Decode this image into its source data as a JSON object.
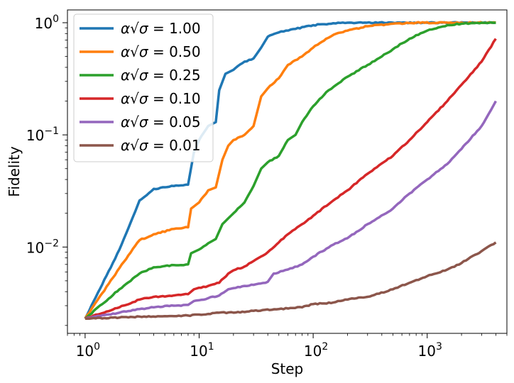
{
  "chart_data": {
    "type": "line",
    "xscale": "log",
    "yscale": "log",
    "xlabel": "Step",
    "ylabel": "Fidelity",
    "xlim": [
      0.7,
      5000
    ],
    "ylim": [
      0.0017,
      1.3
    ],
    "grid": false,
    "legend_position": "top-left",
    "x_ticks": [
      {
        "value": 1,
        "base": "10",
        "exp": "0"
      },
      {
        "value": 10,
        "base": "10",
        "exp": "1"
      },
      {
        "value": 100,
        "base": "10",
        "exp": "2"
      },
      {
        "value": 1000,
        "base": "10",
        "exp": "3"
      }
    ],
    "y_ticks": [
      {
        "value": 0.01,
        "base": "10",
        "exp": "−2"
      },
      {
        "value": 0.1,
        "base": "10",
        "exp": "−1"
      },
      {
        "value": 1,
        "base": "10",
        "exp": "0"
      }
    ],
    "series": [
      {
        "name": "1.00",
        "legend_prefix": "α√σ = ",
        "color": "#1f77b4",
        "points": [
          [
            1,
            0.0023
          ],
          [
            2,
            0.0095
          ],
          [
            3,
            0.026
          ],
          [
            4,
            0.033
          ],
          [
            6,
            0.035
          ],
          [
            8,
            0.036
          ],
          [
            9,
            0.07
          ],
          [
            10,
            0.09
          ],
          [
            12,
            0.12
          ],
          [
            14,
            0.13
          ],
          [
            15,
            0.25
          ],
          [
            17,
            0.35
          ],
          [
            20,
            0.38
          ],
          [
            25,
            0.45
          ],
          [
            30,
            0.48
          ],
          [
            35,
            0.6
          ],
          [
            40,
            0.75
          ],
          [
            50,
            0.82
          ],
          [
            70,
            0.88
          ],
          [
            100,
            0.95
          ],
          [
            150,
            0.99
          ],
          [
            200,
            1.0
          ],
          [
            500,
            1.0
          ],
          [
            4000,
            1.0
          ]
        ]
      },
      {
        "name": "0.50",
        "legend_prefix": "α√σ = ",
        "color": "#ff7f0e",
        "points": [
          [
            1,
            0.0023
          ],
          [
            2,
            0.0065
          ],
          [
            3,
            0.0115
          ],
          [
            4,
            0.013
          ],
          [
            6,
            0.0145
          ],
          [
            8,
            0.015
          ],
          [
            8.5,
            0.022
          ],
          [
            10,
            0.025
          ],
          [
            12,
            0.032
          ],
          [
            14,
            0.034
          ],
          [
            16,
            0.06
          ],
          [
            18,
            0.08
          ],
          [
            20,
            0.09
          ],
          [
            25,
            0.1
          ],
          [
            30,
            0.12
          ],
          [
            35,
            0.22
          ],
          [
            40,
            0.26
          ],
          [
            50,
            0.32
          ],
          [
            60,
            0.42
          ],
          [
            80,
            0.5
          ],
          [
            100,
            0.6
          ],
          [
            130,
            0.72
          ],
          [
            160,
            0.8
          ],
          [
            200,
            0.85
          ],
          [
            300,
            0.93
          ],
          [
            500,
            0.98
          ],
          [
            800,
            1.0
          ],
          [
            4000,
            1.0
          ]
        ]
      },
      {
        "name": "0.25",
        "legend_prefix": "α√σ = ",
        "color": "#2ca02c",
        "points": [
          [
            1,
            0.0023
          ],
          [
            2,
            0.0042
          ],
          [
            3,
            0.0058
          ],
          [
            4,
            0.0066
          ],
          [
            6,
            0.0069
          ],
          [
            8,
            0.007
          ],
          [
            8.5,
            0.0088
          ],
          [
            10,
            0.0095
          ],
          [
            12,
            0.0108
          ],
          [
            14,
            0.0118
          ],
          [
            16,
            0.016
          ],
          [
            18,
            0.018
          ],
          [
            20,
            0.02
          ],
          [
            25,
            0.025
          ],
          [
            30,
            0.035
          ],
          [
            35,
            0.05
          ],
          [
            40,
            0.057
          ],
          [
            50,
            0.065
          ],
          [
            60,
            0.09
          ],
          [
            70,
            0.1
          ],
          [
            80,
            0.13
          ],
          [
            100,
            0.18
          ],
          [
            130,
            0.24
          ],
          [
            160,
            0.28
          ],
          [
            200,
            0.33
          ],
          [
            300,
            0.42
          ],
          [
            400,
            0.5
          ],
          [
            500,
            0.58
          ],
          [
            700,
            0.72
          ],
          [
            1000,
            0.85
          ],
          [
            1500,
            0.95
          ],
          [
            2000,
            0.98
          ],
          [
            3000,
            1.0
          ],
          [
            4000,
            1.0
          ]
        ]
      },
      {
        "name": "0.10",
        "legend_prefix": "α√σ = ",
        "color": "#d62728",
        "points": [
          [
            1,
            0.0023
          ],
          [
            2,
            0.0029
          ],
          [
            3,
            0.0034
          ],
          [
            4,
            0.0036
          ],
          [
            6,
            0.0037
          ],
          [
            8,
            0.0038
          ],
          [
            9,
            0.0042
          ],
          [
            12,
            0.0045
          ],
          [
            15,
            0.0048
          ],
          [
            18,
            0.0058
          ],
          [
            20,
            0.0062
          ],
          [
            25,
            0.0067
          ],
          [
            30,
            0.0075
          ],
          [
            40,
            0.009
          ],
          [
            50,
            0.011
          ],
          [
            60,
            0.013
          ],
          [
            80,
            0.016
          ],
          [
            100,
            0.019
          ],
          [
            150,
            0.026
          ],
          [
            200,
            0.032
          ],
          [
            300,
            0.045
          ],
          [
            500,
            0.065
          ],
          [
            700,
            0.09
          ],
          [
            1000,
            0.13
          ],
          [
            1500,
            0.2
          ],
          [
            2000,
            0.28
          ],
          [
            3000,
            0.45
          ],
          [
            4000,
            0.72
          ]
        ]
      },
      {
        "name": "0.05",
        "legend_prefix": "α√σ = ",
        "color": "#9467bd",
        "points": [
          [
            1,
            0.0023
          ],
          [
            2,
            0.0026
          ],
          [
            3,
            0.0028
          ],
          [
            4,
            0.0029
          ],
          [
            6,
            0.003
          ],
          [
            8,
            0.00305
          ],
          [
            9,
            0.0033
          ],
          [
            12,
            0.0035
          ],
          [
            15,
            0.0037
          ],
          [
            18,
            0.0042
          ],
          [
            20,
            0.0043
          ],
          [
            25,
            0.0045
          ],
          [
            30,
            0.0046
          ],
          [
            40,
            0.0049
          ],
          [
            45,
            0.0058
          ],
          [
            60,
            0.0063
          ],
          [
            80,
            0.007
          ],
          [
            100,
            0.0082
          ],
          [
            150,
            0.0105
          ],
          [
            200,
            0.012
          ],
          [
            300,
            0.016
          ],
          [
            500,
            0.022
          ],
          [
            700,
            0.03
          ],
          [
            1000,
            0.04
          ],
          [
            1500,
            0.055
          ],
          [
            2000,
            0.075
          ],
          [
            3000,
            0.12
          ],
          [
            4000,
            0.2
          ]
        ]
      },
      {
        "name": "0.01",
        "legend_prefix": "α√σ = ",
        "color": "#8c564b",
        "points": [
          [
            1,
            0.0023
          ],
          [
            2,
            0.00235
          ],
          [
            3,
            0.0024
          ],
          [
            5,
            0.00242
          ],
          [
            8,
            0.00245
          ],
          [
            10,
            0.0025
          ],
          [
            15,
            0.0026
          ],
          [
            20,
            0.0026
          ],
          [
            30,
            0.0027
          ],
          [
            50,
            0.0028
          ],
          [
            80,
            0.0029
          ],
          [
            100,
            0.0031
          ],
          [
            150,
            0.0032
          ],
          [
            200,
            0.0034
          ],
          [
            300,
            0.0036
          ],
          [
            500,
            0.0042
          ],
          [
            700,
            0.0048
          ],
          [
            1000,
            0.0055
          ],
          [
            1500,
            0.0063
          ],
          [
            2000,
            0.0072
          ],
          [
            3000,
            0.0092
          ],
          [
            4000,
            0.011
          ]
        ]
      }
    ]
  }
}
